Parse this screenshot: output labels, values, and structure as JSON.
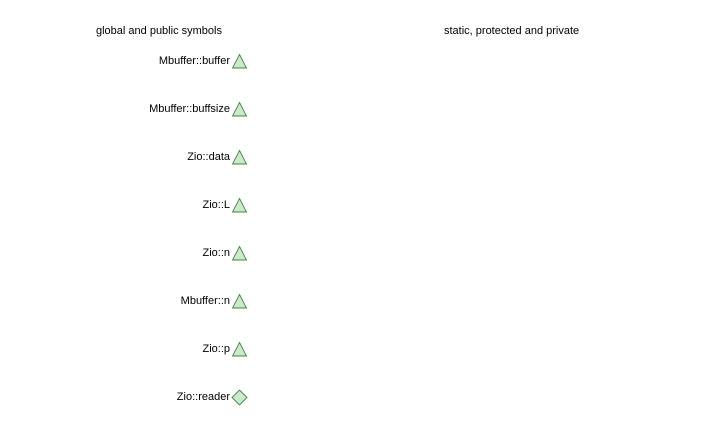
{
  "columns": {
    "left_header": "global and public symbols",
    "right_header": "static, protected and private"
  },
  "legend_colors": {
    "marker_fill": "#cfe6cf",
    "marker_stroke": "#3b8a3b"
  },
  "symbols": [
    {
      "label": "Mbuffer::buffer",
      "kind": "variable",
      "icon": "triangle-icon"
    },
    {
      "label": "Mbuffer::buffsize",
      "kind": "variable",
      "icon": "triangle-icon"
    },
    {
      "label": "Zio::data",
      "kind": "variable",
      "icon": "triangle-icon"
    },
    {
      "label": "Zio::L",
      "kind": "variable",
      "icon": "triangle-icon"
    },
    {
      "label": "Zio::n",
      "kind": "variable",
      "icon": "triangle-icon"
    },
    {
      "label": "Mbuffer::n",
      "kind": "variable",
      "icon": "triangle-icon"
    },
    {
      "label": "Zio::p",
      "kind": "variable",
      "icon": "triangle-icon"
    },
    {
      "label": "Zio::reader",
      "kind": "function",
      "icon": "diamond-icon"
    }
  ]
}
